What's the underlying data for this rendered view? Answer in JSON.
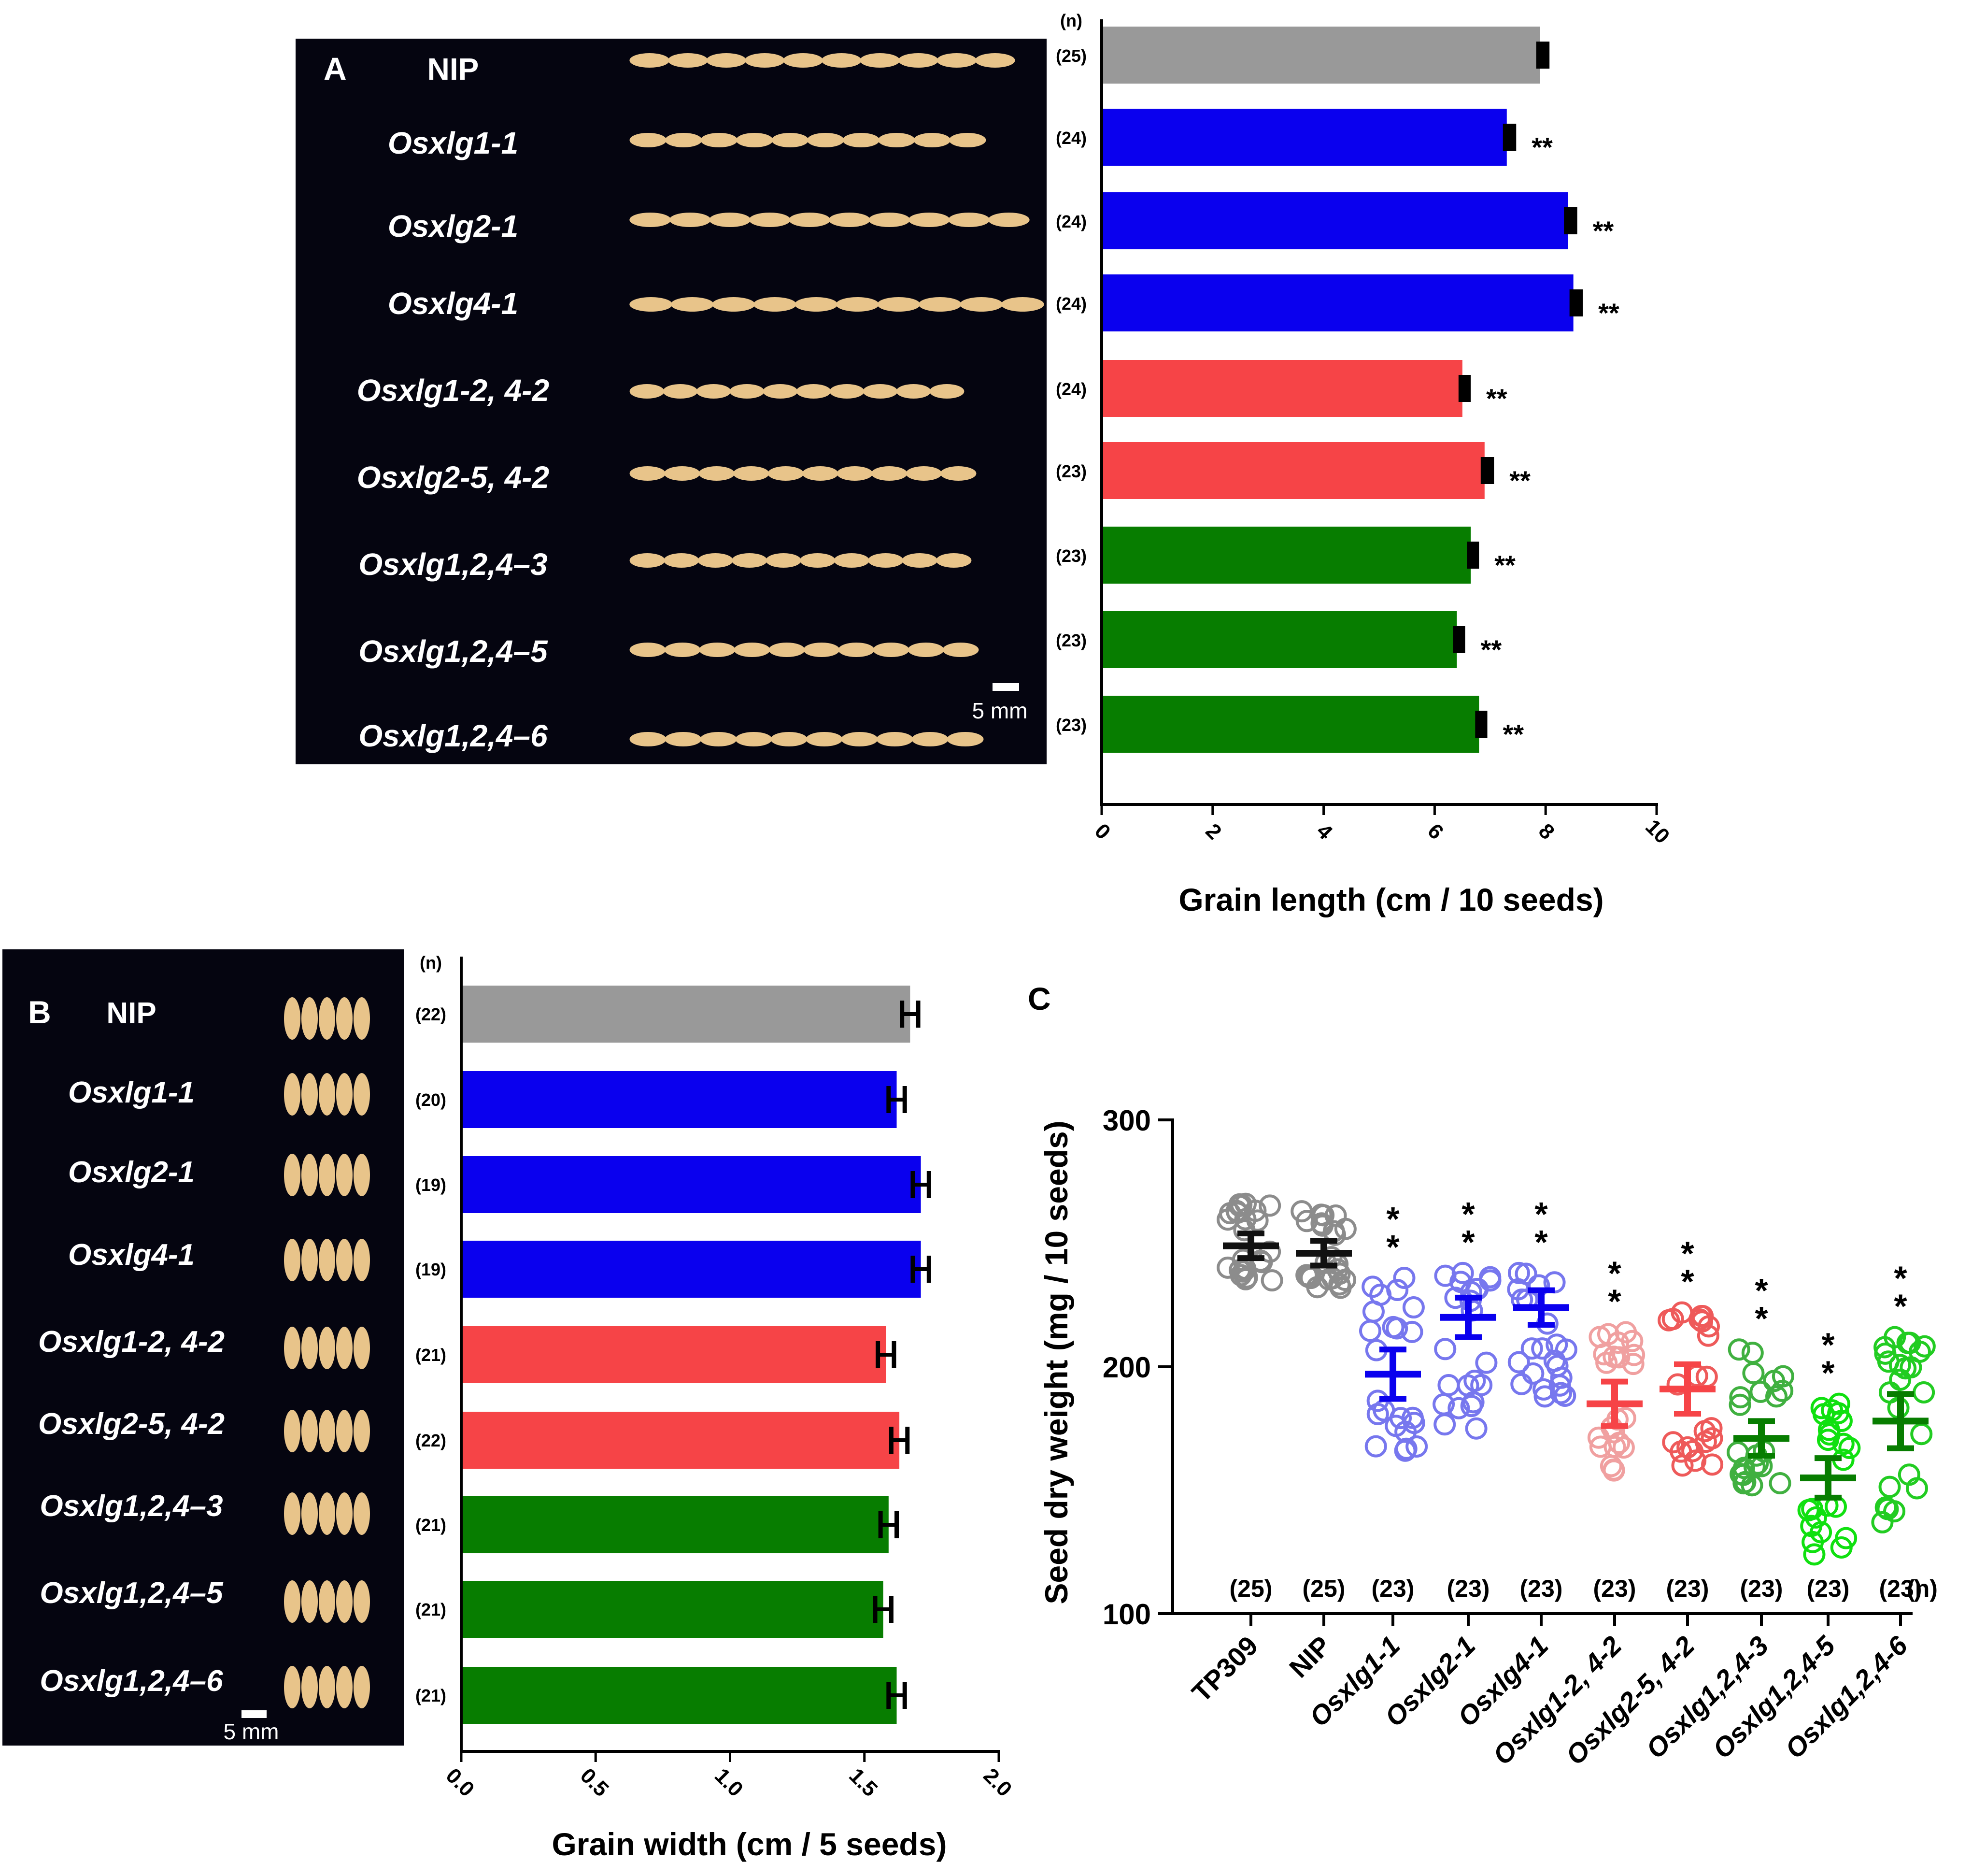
{
  "figure": {
    "panel_a": {
      "label": "A",
      "photo_scale_label": "5 mm",
      "n_header": "(n)",
      "significance_mark": "**"
    },
    "panel_b": {
      "label": "B",
      "photo_scale_label": "5 mm",
      "n_header": "(n)"
    },
    "panel_c": {
      "label": "C",
      "n_header": "(n)",
      "significance_mark": "* *"
    }
  },
  "colors": {
    "grey": "#999999",
    "blue": "#0a00ee",
    "red": "#f64447",
    "green": "#077d00",
    "c_grey_pts": "#8c8c8c",
    "c_blue_pts": "#7777ee",
    "c_lightred_pts": "#f0a0a0",
    "c_red_pts": "#ee5a5a",
    "c_darkgreen_pts": "#40b040",
    "c_lime_pts": "#10e010",
    "c_green_pts": "#22cc22",
    "photo_bg": "#050510",
    "grain": "#e8c48a"
  },
  "chart_data": [
    {
      "panel": "A",
      "type": "bar",
      "orientation": "horizontal",
      "title": "",
      "xlabel": "Grain length (cm / 10 seeds)",
      "xlim": [
        0,
        10
      ],
      "xticks": [
        "0",
        "2",
        "4",
        "6",
        "8",
        "10"
      ],
      "categories": [
        "NIP",
        "Osxlg1-1",
        "Osxlg2-1",
        "Osxlg4-1",
        "Osxlg1-2, 4-2",
        "Osxlg2-5, 4-2",
        "Osxlg1,2,4–3",
        "Osxlg1,2,4–5",
        "Osxlg1,2,4–6"
      ],
      "values": [
        7.9,
        7.3,
        8.4,
        8.5,
        6.5,
        6.9,
        6.65,
        6.4,
        6.8
      ],
      "errors": [
        0.1,
        0.1,
        0.1,
        0.1,
        0.08,
        0.1,
        0.08,
        0.08,
        0.08
      ],
      "n": [
        "(25)",
        "(24)",
        "(24)",
        "(24)",
        "(24)",
        "(23)",
        "(23)",
        "(23)",
        "(23)"
      ],
      "significance": [
        "",
        "**",
        "**",
        "**",
        "**",
        "**",
        "**",
        "**",
        "**"
      ],
      "bar_colors": [
        "grey",
        "blue",
        "blue",
        "blue",
        "red",
        "red",
        "green",
        "green",
        "green"
      ]
    },
    {
      "panel": "B",
      "type": "bar",
      "orientation": "horizontal",
      "title": "",
      "xlabel": "Grain width (cm / 5 seeds)",
      "xlim": [
        0,
        2.0
      ],
      "xticks": [
        "0.0",
        "0.5",
        "1.0",
        "1.5",
        "2.0"
      ],
      "categories": [
        "NIP",
        "Osxlg1-1",
        "Osxlg2-1",
        "Osxlg4-1",
        "Osxlg1-2, 4-2",
        "Osxlg2-5, 4-2",
        "Osxlg1,2,4–3",
        "Osxlg1,2,4–5",
        "Osxlg1,2,4–6"
      ],
      "values": [
        1.67,
        1.62,
        1.71,
        1.71,
        1.58,
        1.63,
        1.59,
        1.57,
        1.62
      ],
      "errors": [
        0.03,
        0.03,
        0.03,
        0.03,
        0.03,
        0.03,
        0.03,
        0.03,
        0.03
      ],
      "n": [
        "(22)",
        "(20)",
        "(19)",
        "(19)",
        "(21)",
        "(22)",
        "(21)",
        "(21)",
        "(21)"
      ],
      "bar_colors": [
        "grey",
        "blue",
        "blue",
        "blue",
        "red",
        "red",
        "green",
        "green",
        "green"
      ]
    },
    {
      "panel": "C",
      "type": "scatter",
      "title": "",
      "xlabel": "",
      "ylabel": "Seed dry weight (mg / 10 seeds)",
      "ylim": [
        100,
        300
      ],
      "yticks": [
        "100",
        "200",
        "300"
      ],
      "categories": [
        "TP309",
        "NIP",
        "Osxlg1-1",
        "Osxlg2-1",
        "Osxlg4-1",
        "Osxlg1-2, 4-2",
        "Osxlg2-5, 4-2",
        "Osxlg1,2,4-3",
        "Osxlg1,2,4-5",
        "Osxlg1,2,4-6"
      ],
      "means": [
        249,
        246,
        197,
        220,
        224,
        185,
        191,
        171,
        155,
        178
      ],
      "errors": [
        5,
        5,
        10,
        8,
        7,
        9,
        10,
        7,
        8,
        11
      ],
      "spread_min": [
        235,
        232,
        166,
        175,
        188,
        158,
        160,
        152,
        124,
        137
      ],
      "spread_max": [
        266,
        263,
        236,
        238,
        238,
        214,
        222,
        207,
        185,
        212
      ],
      "n": [
        "(25)",
        "(25)",
        "(23)",
        "(23)",
        "(23)",
        "(23)",
        "(23)",
        "(23)",
        "(23)",
        "(23)"
      ],
      "significance": [
        "",
        "",
        "* *",
        "* *",
        "* *",
        "* *",
        "* *",
        "* *",
        "* *",
        "* *"
      ],
      "point_colors": [
        "c_grey_pts",
        "c_grey_pts",
        "c_blue_pts",
        "c_blue_pts",
        "c_blue_pts",
        "c_lightred_pts",
        "c_red_pts",
        "c_darkgreen_pts",
        "c_lime_pts",
        "c_green_pts"
      ],
      "mean_colors": [
        "#111111",
        "#111111",
        "blue",
        "blue",
        "blue",
        "red",
        "red",
        "green",
        "green",
        "green"
      ]
    }
  ]
}
